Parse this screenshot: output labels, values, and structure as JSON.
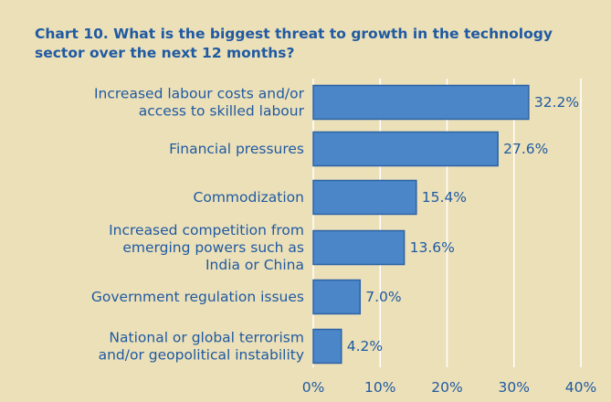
{
  "title": "Chart 10. What is the biggest threat to growth in the technology sector over the next 12 months?",
  "colors": {
    "background": "#ece0b8",
    "bar_fill": "#4a86c8",
    "bar_stroke": "#2e63a4",
    "text": "#1f5aa2",
    "grid": "#ffffff"
  },
  "chart_data": {
    "type": "bar",
    "orientation": "horizontal",
    "categories": [
      [
        "Increased labour costs and/or",
        "access to skilled labour"
      ],
      [
        "Financial pressures"
      ],
      [
        "Commodization"
      ],
      [
        "Increased competition from",
        "emerging powers such as",
        "India or China"
      ],
      [
        "Government regulation issues"
      ],
      [
        "National or global terrorism",
        "and/or geopolitical instability"
      ]
    ],
    "values": [
      32.2,
      27.6,
      15.4,
      13.6,
      7.0,
      4.2
    ],
    "value_labels": [
      "32.2%",
      "27.6%",
      "15.4%",
      "13.6%",
      "7.0%",
      "4.2%"
    ],
    "xlim": [
      0,
      40
    ],
    "xticks": [
      0,
      10,
      20,
      30,
      40
    ],
    "xtick_labels": [
      "0%",
      "10%",
      "20%",
      "30%",
      "40%"
    ],
    "grid": true
  }
}
